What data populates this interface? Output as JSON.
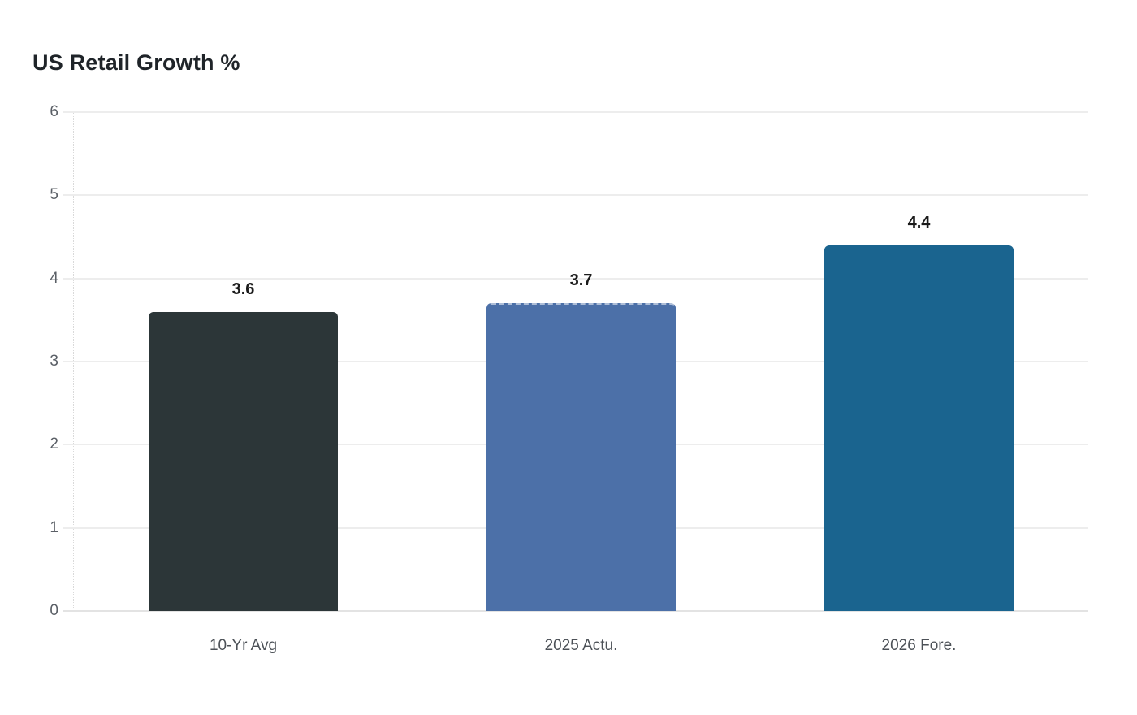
{
  "page": {
    "background": "#ffffff"
  },
  "chart_data": {
    "type": "bar",
    "title": "US Retail Growth %",
    "categories": [
      "10-Yr Avg",
      "2025 Actu.",
      "2026 Fore."
    ],
    "values": [
      3.6,
      3.7,
      4.4
    ],
    "value_labels": [
      "3.6",
      "3.7",
      "4.4"
    ],
    "bar_colors": [
      "#2c3638",
      "#4c70a8",
      "#1a648f"
    ],
    "dashed_top_bar_index": 1,
    "xlabel": "",
    "ylabel": "",
    "ylim": [
      0,
      6
    ],
    "yticks": [
      0,
      1,
      2,
      3,
      4,
      5,
      6
    ],
    "grid": "horizontal",
    "legend": "none",
    "colors": {
      "title": "#1f2429",
      "tick_labels": "#5a5f66",
      "category_labels": "#4c5157",
      "gridlines": "#ededed",
      "value_labels": "#1b1b1b"
    }
  }
}
